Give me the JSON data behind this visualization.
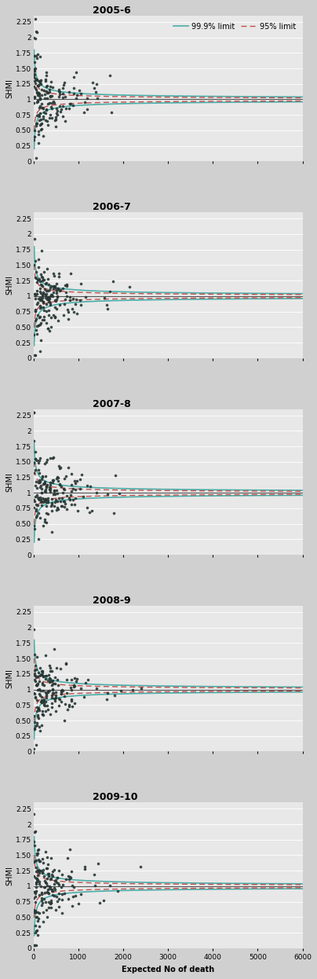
{
  "years": [
    "2005-6",
    "2006-7",
    "2007-8",
    "2008-9",
    "2009-10"
  ],
  "xlim": [
    0,
    6000
  ],
  "ylim": [
    0,
    2.35
  ],
  "yticks": [
    0,
    0.25,
    0.5,
    0.75,
    1.0,
    1.25,
    1.5,
    1.75,
    2.0,
    2.25
  ],
  "xticks": [
    0,
    1000,
    2000,
    3000,
    4000,
    5000,
    6000
  ],
  "xlabel": "Expected No of death",
  "ylabel": "SHMI",
  "bg_color": "#e8e8e8",
  "center_line_color": "#555555",
  "limit999_color": "#4aada8",
  "limit95_color": "#c0504d",
  "dot_color": "#2d3d3a",
  "dot_size": 5,
  "dot_edge_color": "#1a2825",
  "dot_edge_width": 0.3,
  "legend_fontsize": 7,
  "title_fontsize": 9,
  "tick_fontsize": 6.5,
  "ylabel_fontsize": 7,
  "hspace": 0.35
}
